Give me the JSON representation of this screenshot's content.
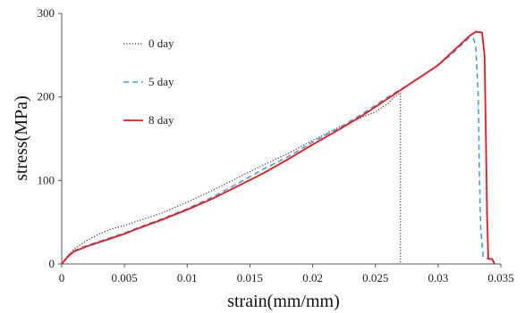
{
  "chart_data": {
    "type": "line",
    "title": "",
    "xlabel": "strain(mm/mm)",
    "ylabel": "stress(MPa)",
    "xlim": [
      0,
      0.035
    ],
    "ylim": [
      0,
      300
    ],
    "x_ticks": [
      0,
      0.005,
      0.01,
      0.015,
      0.02,
      0.025,
      0.03,
      0.035
    ],
    "x_tick_labels": [
      "0",
      "0.005",
      "0.01",
      "0.015",
      "0.02",
      "0.025",
      "0.03",
      "0.035"
    ],
    "y_ticks": [
      0,
      100,
      200,
      300
    ],
    "y_tick_labels": [
      "0",
      "100",
      "200",
      "300"
    ],
    "grid": false,
    "legend": "top-left",
    "series": [
      {
        "name": "0 day",
        "color": "#333333",
        "style": "dotted",
        "points": [
          [
            0,
            0
          ],
          [
            0.0005,
            10
          ],
          [
            0.001,
            18
          ],
          [
            0.002,
            28
          ],
          [
            0.003,
            36
          ],
          [
            0.004,
            42
          ],
          [
            0.005,
            46
          ],
          [
            0.006,
            51
          ],
          [
            0.008,
            61
          ],
          [
            0.01,
            74
          ],
          [
            0.012,
            88
          ],
          [
            0.014,
            103
          ],
          [
            0.016,
            118
          ],
          [
            0.018,
            132
          ],
          [
            0.02,
            148
          ],
          [
            0.022,
            163
          ],
          [
            0.024,
            176
          ],
          [
            0.025,
            182
          ],
          [
            0.026,
            192
          ],
          [
            0.0265,
            200
          ],
          [
            0.027,
            205
          ],
          [
            0.027,
            100
          ],
          [
            0.027,
            2
          ]
        ]
      },
      {
        "name": "5 day",
        "color": "#4a9fdc",
        "style": "dashed",
        "points": [
          [
            0,
            0
          ],
          [
            0.0005,
            10
          ],
          [
            0.001,
            16
          ],
          [
            0.002,
            22
          ],
          [
            0.003,
            27
          ],
          [
            0.004,
            32
          ],
          [
            0.005,
            37
          ],
          [
            0.006,
            43
          ],
          [
            0.008,
            54
          ],
          [
            0.01,
            66
          ],
          [
            0.012,
            80
          ],
          [
            0.014,
            96
          ],
          [
            0.016,
            113
          ],
          [
            0.018,
            128
          ],
          [
            0.02,
            146
          ],
          [
            0.022,
            162
          ],
          [
            0.024,
            180
          ],
          [
            0.026,
            200
          ],
          [
            0.028,
            218
          ],
          [
            0.03,
            238
          ],
          [
            0.031,
            250
          ],
          [
            0.032,
            264
          ],
          [
            0.0325,
            271
          ],
          [
            0.0328,
            270
          ],
          [
            0.033,
            262
          ],
          [
            0.0332,
            200
          ],
          [
            0.0333,
            100
          ],
          [
            0.0334,
            40
          ],
          [
            0.0336,
            8
          ],
          [
            0.034,
            6
          ]
        ]
      },
      {
        "name": "8 day",
        "color": "#e8161c",
        "style": "solid",
        "points": [
          [
            0,
            0
          ],
          [
            0.0005,
            9
          ],
          [
            0.001,
            15
          ],
          [
            0.002,
            21
          ],
          [
            0.003,
            26
          ],
          [
            0.004,
            31
          ],
          [
            0.005,
            36
          ],
          [
            0.006,
            42
          ],
          [
            0.008,
            53
          ],
          [
            0.01,
            65
          ],
          [
            0.012,
            78
          ],
          [
            0.014,
            93
          ],
          [
            0.016,
            108
          ],
          [
            0.018,
            125
          ],
          [
            0.02,
            143
          ],
          [
            0.022,
            160
          ],
          [
            0.024,
            178
          ],
          [
            0.026,
            198
          ],
          [
            0.028,
            218
          ],
          [
            0.03,
            238
          ],
          [
            0.031,
            252
          ],
          [
            0.032,
            266
          ],
          [
            0.0325,
            273
          ],
          [
            0.033,
            278
          ],
          [
            0.0335,
            277
          ],
          [
            0.0337,
            250
          ],
          [
            0.0338,
            160
          ],
          [
            0.0339,
            60
          ],
          [
            0.034,
            6
          ],
          [
            0.0343,
            6
          ],
          [
            0.0345,
            0
          ]
        ]
      }
    ]
  }
}
